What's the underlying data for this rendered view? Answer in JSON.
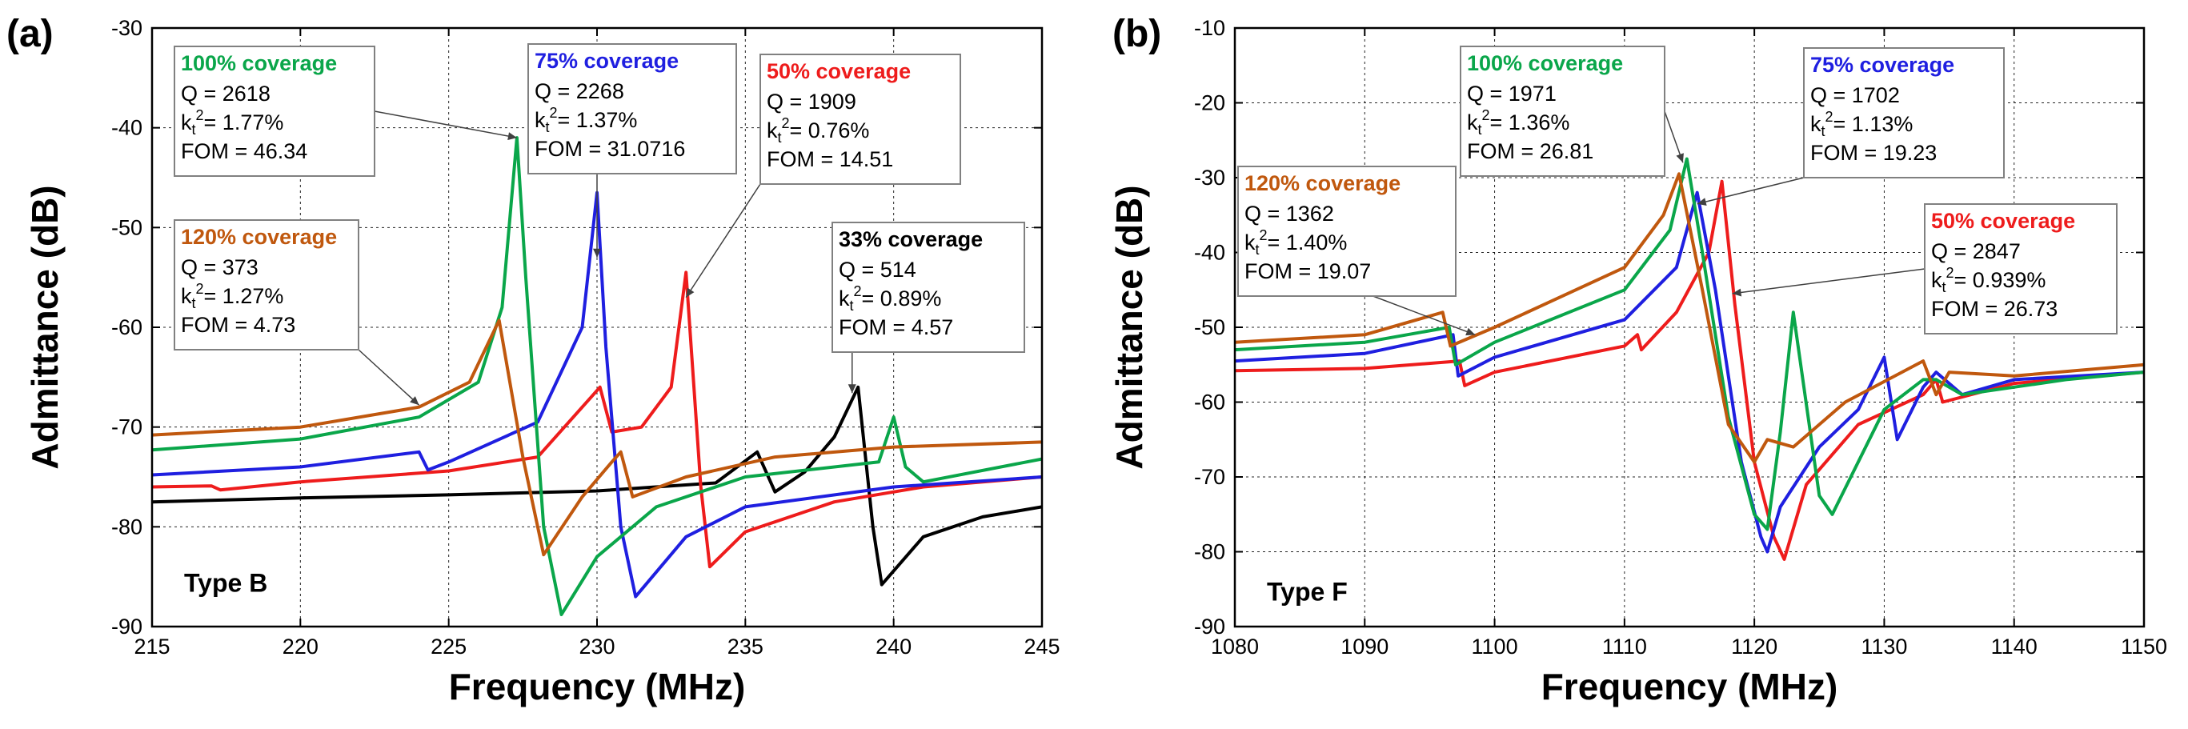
{
  "colors": {
    "green": "#0aa64a",
    "blue": "#1f1fe0",
    "red": "#ee1c1c",
    "brown": "#c0580e",
    "black": "#000000"
  },
  "chart_data": [
    {
      "type": "line",
      "panel_label": "(a)",
      "type_label": "Type B",
      "xlabel": "Frequency (MHz)",
      "ylabel": "Admittance (dB)",
      "xlim": [
        215,
        245
      ],
      "ylim": [
        -90,
        -30
      ],
      "xticks": [
        215,
        220,
        225,
        230,
        235,
        240,
        245
      ],
      "yticks": [
        -90,
        -80,
        -70,
        -60,
        -50,
        -40,
        -30
      ],
      "grid": true,
      "series": [
        {
          "name": "33% coverage",
          "color": "black",
          "x": [
            215,
            220,
            225,
            230,
            234,
            235.4,
            236,
            237,
            238,
            238.8,
            239.3,
            239.6,
            241,
            243,
            245
          ],
          "y": [
            -77.5,
            -77.1,
            -76.8,
            -76.4,
            -75.6,
            -72.5,
            -76.5,
            -74.5,
            -71,
            -66,
            -80,
            -85.8,
            -81,
            -79,
            -78
          ]
        },
        {
          "name": "50% coverage",
          "color": "red",
          "x": [
            215,
            217,
            217.3,
            220,
            225,
            228,
            229.8,
            230.1,
            230.5,
            231.5,
            232.5,
            233,
            233.5,
            233.8,
            235,
            238,
            241,
            245
          ],
          "y": [
            -76,
            -75.9,
            -76.3,
            -75.5,
            -74.4,
            -73,
            -67,
            -66,
            -70.5,
            -70,
            -66,
            -54.5,
            -76,
            -84,
            -80.5,
            -77.5,
            -76,
            -75
          ]
        },
        {
          "name": "75% coverage",
          "color": "blue",
          "x": [
            215,
            220,
            224,
            224.3,
            225,
            228,
            229.5,
            230,
            230.3,
            230.8,
            231.3,
            233,
            235,
            240,
            245
          ],
          "y": [
            -74.8,
            -74,
            -72.5,
            -74.3,
            -73.5,
            -69.5,
            -60,
            -46.5,
            -62,
            -80,
            -87,
            -81,
            -78,
            -76,
            -75
          ]
        },
        {
          "name": "100% coverage",
          "color": "green",
          "x": [
            215,
            220,
            224,
            226,
            226.8,
            227.3,
            227.6,
            228.2,
            228.8,
            230,
            232,
            235,
            239.5,
            240,
            240.4,
            241,
            245
          ],
          "y": [
            -72.3,
            -71.2,
            -69,
            -65.5,
            -58,
            -41,
            -55,
            -80,
            -88.8,
            -83,
            -78,
            -75,
            -73.5,
            -69,
            -74,
            -75.5,
            -73.2
          ]
        },
        {
          "name": "120% coverage",
          "color": "brown",
          "x": [
            215,
            220,
            224,
            225.7,
            226.7,
            227.5,
            228.2,
            229.5,
            230.5,
            230.8,
            231.2,
            233,
            236,
            240,
            245
          ],
          "y": [
            -70.8,
            -70,
            -68,
            -65.5,
            -59.3,
            -73,
            -82.8,
            -77,
            -73.5,
            -72.5,
            -77,
            -75,
            -73,
            -72,
            -71.5
          ]
        }
      ],
      "annotations": [
        {
          "series": "100% coverage",
          "color": "green",
          "lines": [
            "Q = 2618",
            "k",
            "FOM = 46.34"
          ],
          "kt": "= 1.77%",
          "target": [
            227.3,
            -41
          ]
        },
        {
          "series": "75% coverage",
          "color": "blue",
          "lines": [
            "Q = 2268",
            "k",
            "FOM = 31.0716"
          ],
          "kt": "= 1.37%",
          "target": [
            230.0,
            -53
          ]
        },
        {
          "series": "50% coverage",
          "color": "red",
          "lines": [
            "Q = 1909",
            "k",
            "FOM = 14.51"
          ],
          "kt": "= 0.76%",
          "target": [
            233.0,
            -57
          ]
        },
        {
          "series": "120% coverage",
          "color": "brown",
          "lines": [
            "Q = 373",
            "k",
            "FOM = 4.73"
          ],
          "kt": "= 1.27%",
          "target": [
            224.0,
            -67.8
          ]
        },
        {
          "series": "33% coverage",
          "color": "black",
          "lines": [
            "Q = 514",
            "k",
            "FOM = 4.57"
          ],
          "kt": "= 0.89%",
          "target": [
            238.6,
            -66.6
          ]
        }
      ]
    },
    {
      "type": "line",
      "panel_label": "(b)",
      "type_label": "Type F",
      "xlabel": "Frequency (MHz)",
      "ylabel": "Admittance (dB)",
      "xlim": [
        1080,
        1150
      ],
      "ylim": [
        -90,
        -10
      ],
      "xticks": [
        1080,
        1090,
        1100,
        1110,
        1120,
        1130,
        1140,
        1150
      ],
      "yticks": [
        -90,
        -80,
        -70,
        -60,
        -50,
        -40,
        -30,
        -20,
        -10
      ],
      "grid": true,
      "series": [
        {
          "name": "50% coverage",
          "color": "red",
          "x": [
            1080,
            1090,
            1097.3,
            1097.7,
            1100,
            1110,
            1111,
            1111.3,
            1114,
            1116.5,
            1117.5,
            1118.5,
            1120,
            1121.5,
            1122.3,
            1124,
            1128,
            1133,
            1134,
            1134.5,
            1140,
            1150
          ],
          "y": [
            -55.8,
            -55.5,
            -54.5,
            -57.8,
            -56,
            -52.5,
            -51,
            -53,
            -48,
            -40,
            -30.5,
            -47,
            -68,
            -78,
            -81,
            -71,
            -63,
            -59,
            -57,
            -60,
            -57.5,
            -56
          ]
        },
        {
          "name": "75% coverage",
          "color": "blue",
          "x": [
            1080,
            1090,
            1096.8,
            1097.2,
            1100,
            1110,
            1114,
            1115.6,
            1117,
            1119,
            1120.5,
            1121,
            1122,
            1125,
            1128,
            1130,
            1131,
            1133,
            1134,
            1136,
            1140,
            1150
          ],
          "y": [
            -54.5,
            -53.5,
            -51,
            -56.5,
            -54,
            -49,
            -42,
            -32,
            -45,
            -68,
            -78,
            -80,
            -74,
            -66,
            -61,
            -54,
            -65,
            -58,
            -56,
            -59,
            -57,
            -56
          ]
        },
        {
          "name": "100% coverage",
          "color": "green",
          "x": [
            1080,
            1090,
            1096.5,
            1097,
            1100,
            1110,
            1113.5,
            1114.8,
            1116,
            1118,
            1120,
            1121,
            1122,
            1123,
            1125,
            1126,
            1130,
            1133,
            1134,
            1136,
            1144,
            1150
          ],
          "y": [
            -53,
            -52,
            -50,
            -55,
            -52,
            -45,
            -37,
            -27.5,
            -40,
            -62,
            -75,
            -77,
            -64,
            -48,
            -72.5,
            -75,
            -61,
            -57,
            -57,
            -59,
            -57,
            -56
          ]
        },
        {
          "name": "120% coverage",
          "color": "brown",
          "x": [
            1080,
            1090,
            1096,
            1096.6,
            1100,
            1110,
            1113,
            1114.2,
            1116,
            1118,
            1120,
            1121,
            1123,
            1127,
            1133,
            1134,
            1135,
            1140,
            1150
          ],
          "y": [
            -52,
            -51,
            -48,
            -52.5,
            -50,
            -42,
            -35,
            -29.5,
            -45,
            -63,
            -68,
            -65,
            -66,
            -60,
            -54.5,
            -59,
            -56,
            -56.5,
            -55
          ]
        }
      ],
      "annotations": [
        {
          "series": "120% coverage",
          "color": "brown",
          "lines": [
            "Q = 1362",
            "k",
            "FOM = 19.07"
          ],
          "kt": "= 1.40%",
          "target": [
            1098.5,
            -51
          ]
        },
        {
          "series": "100% coverage",
          "color": "green",
          "lines": [
            "Q = 1971",
            "k",
            "FOM = 26.81"
          ],
          "kt": "= 1.36%",
          "target": [
            1114.5,
            -28
          ]
        },
        {
          "series": "75% coverage",
          "color": "blue",
          "lines": [
            "Q = 1702",
            "k",
            "FOM = 19.23"
          ],
          "kt": "= 1.13%",
          "target": [
            1115.6,
            -33.5
          ]
        },
        {
          "series": "50% coverage",
          "color": "red",
          "lines": [
            "Q = 2847",
            "k",
            "FOM = 26.73"
          ],
          "kt": "= 0.939%",
          "target": [
            1118.3,
            -45.5
          ]
        }
      ]
    }
  ]
}
